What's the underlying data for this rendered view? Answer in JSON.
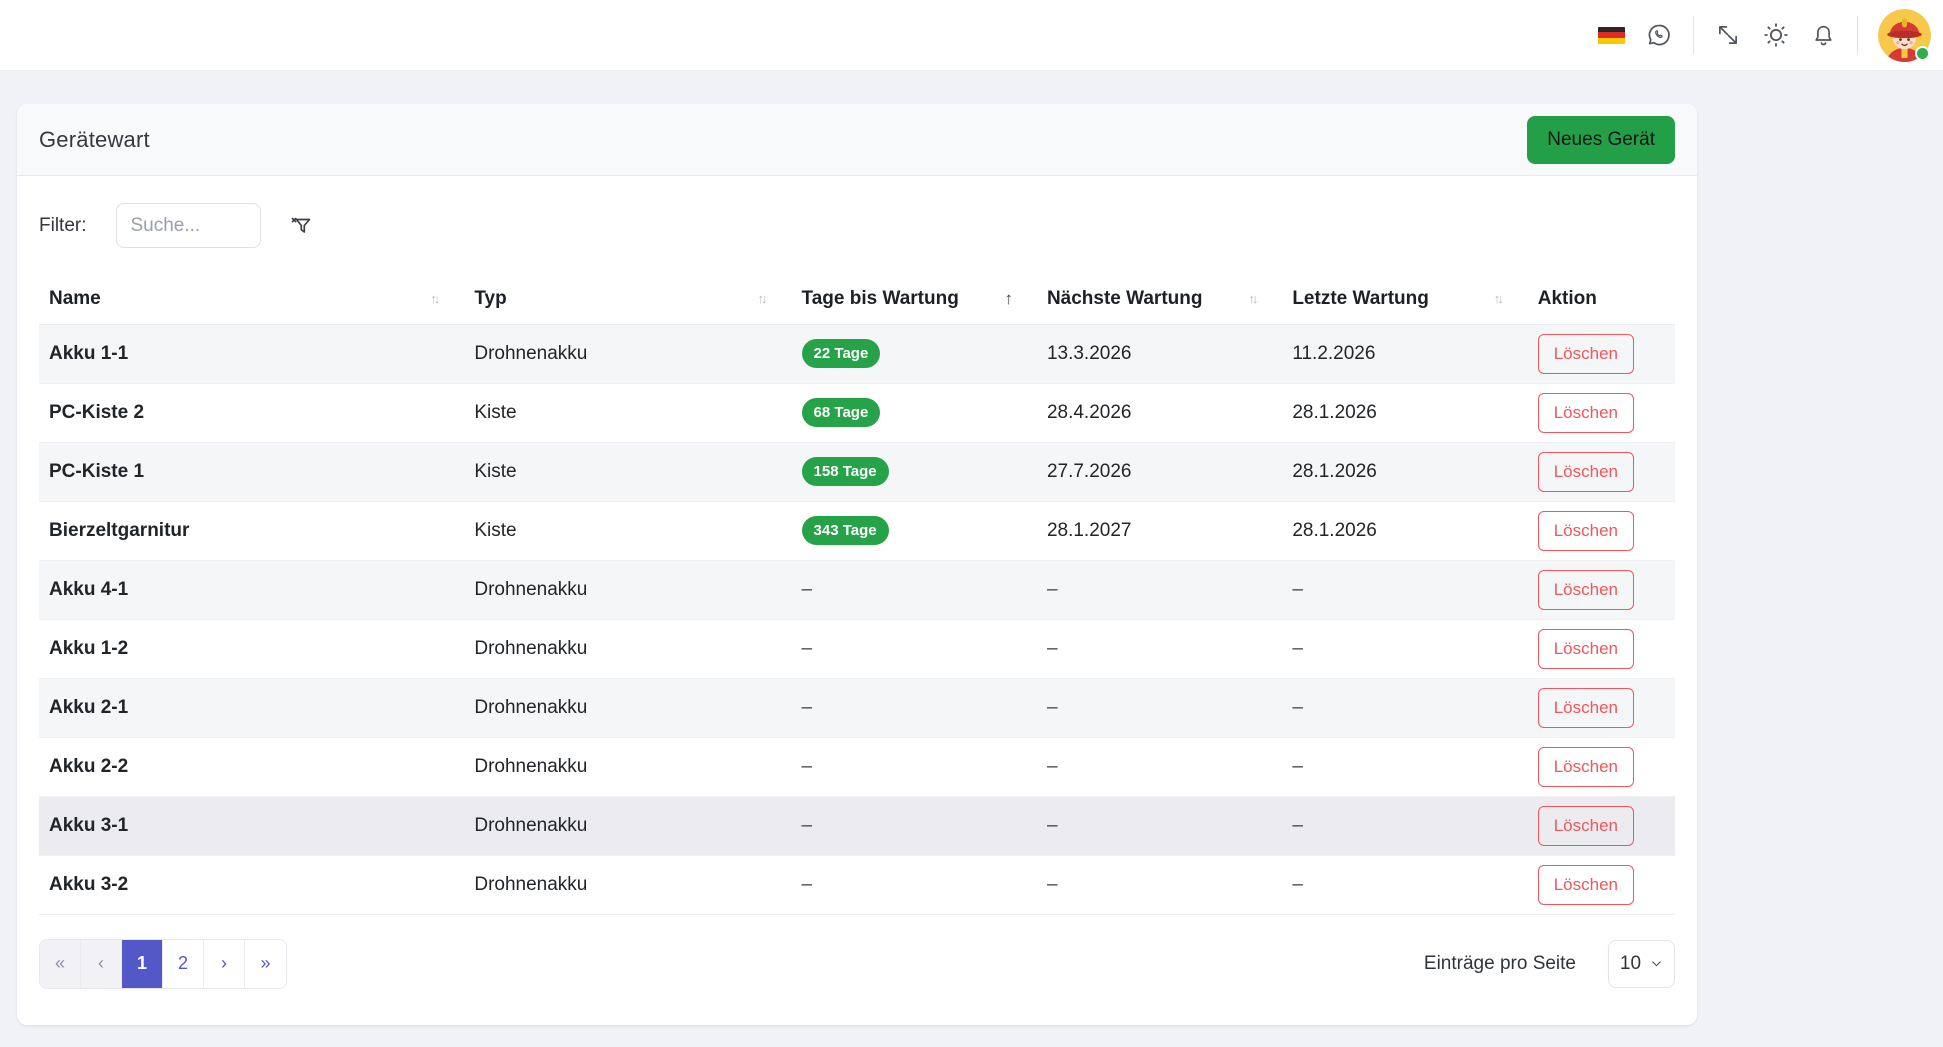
{
  "topbar": {
    "language": "de",
    "avatar_status": "online"
  },
  "page": {
    "title": "Gerätewart",
    "new_device_button": "Neues Gerät"
  },
  "filter": {
    "label": "Filter:",
    "search_placeholder": "Suche..."
  },
  "table": {
    "columns": [
      {
        "label": "Name",
        "key": "name",
        "sort": "both"
      },
      {
        "label": "Typ",
        "key": "typ",
        "sort": "both"
      },
      {
        "label": "Tage bis Wartung",
        "key": "tage-bis-wartung",
        "sort": "asc"
      },
      {
        "label": "Nächste Wartung",
        "key": "naechste-wartung",
        "sort": "both"
      },
      {
        "label": "Letzte Wartung",
        "key": "letzte-wartung",
        "sort": "both"
      },
      {
        "label": "Aktion",
        "key": "aktion",
        "sort": "none"
      }
    ],
    "empty_value": "–",
    "delete_label": "Löschen",
    "rows": [
      {
        "name": "Akku 1-1",
        "typ": "Drohnenakku",
        "tage_badge": "22 Tage",
        "naechste": "13.3.2026",
        "letzte": "11.2.2026",
        "highlighted": false
      },
      {
        "name": "PC-Kiste 2",
        "typ": "Kiste",
        "tage_badge": "68 Tage",
        "naechste": "28.4.2026",
        "letzte": "28.1.2026",
        "highlighted": false
      },
      {
        "name": "PC-Kiste 1",
        "typ": "Kiste",
        "tage_badge": "158 Tage",
        "naechste": "27.7.2026",
        "letzte": "28.1.2026",
        "highlighted": false
      },
      {
        "name": "Bierzeltgarnitur",
        "typ": "Kiste",
        "tage_badge": "343 Tage",
        "naechste": "28.1.2027",
        "letzte": "28.1.2026",
        "highlighted": false
      },
      {
        "name": "Akku 4-1",
        "typ": "Drohnenakku",
        "tage_badge": null,
        "naechste": null,
        "letzte": null,
        "highlighted": false
      },
      {
        "name": "Akku 1-2",
        "typ": "Drohnenakku",
        "tage_badge": null,
        "naechste": null,
        "letzte": null,
        "highlighted": false
      },
      {
        "name": "Akku 2-1",
        "typ": "Drohnenakku",
        "tage_badge": null,
        "naechste": null,
        "letzte": null,
        "highlighted": false
      },
      {
        "name": "Akku 2-2",
        "typ": "Drohnenakku",
        "tage_badge": null,
        "naechste": null,
        "letzte": null,
        "highlighted": false
      },
      {
        "name": "Akku 3-1",
        "typ": "Drohnenakku",
        "tage_badge": null,
        "naechste": null,
        "letzte": null,
        "highlighted": true
      },
      {
        "name": "Akku 3-2",
        "typ": "Drohnenakku",
        "tage_badge": null,
        "naechste": null,
        "letzte": null,
        "highlighted": false
      }
    ]
  },
  "pagination": {
    "controls": [
      {
        "label": "«",
        "name": "first-page-button",
        "state": "disabled"
      },
      {
        "label": "‹",
        "name": "previous-page-button",
        "state": "disabled"
      },
      {
        "label": "1",
        "name": "page-1-button",
        "state": "active"
      },
      {
        "label": "2",
        "name": "page-2-button",
        "state": "normal"
      },
      {
        "label": "›",
        "name": "next-page-button",
        "state": "normal"
      },
      {
        "label": "»",
        "name": "last-page-button",
        "state": "normal"
      }
    ],
    "per_page_label": "Einträge pro Seite",
    "per_page_value": "10"
  },
  "colors": {
    "button_green": "#23a047",
    "badge_green": "#26a348",
    "danger_red": "#f0565c",
    "primary_indigo": "#5457c8",
    "page_background": "#f0f2f7",
    "card_header_background": "#f8f9fb"
  }
}
